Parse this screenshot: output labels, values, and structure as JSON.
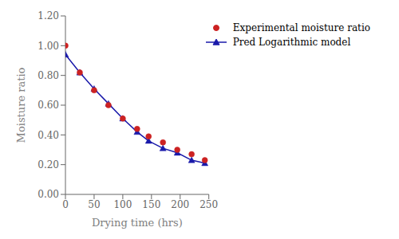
{
  "chart_data": {
    "type": "line",
    "xlabel": "Drying time (hrs)",
    "ylabel": "Moisture ratio",
    "x": [
      0,
      25,
      50,
      75,
      100,
      125,
      145,
      170,
      195,
      220,
      243
    ],
    "series": [
      {
        "name": "Pred Logarithmic model",
        "type": "line",
        "color": "#1a1aaa",
        "marker": "triangle",
        "values": [
          0.94,
          0.82,
          0.71,
          0.61,
          0.51,
          0.42,
          0.36,
          0.31,
          0.28,
          0.23,
          0.21
        ]
      },
      {
        "name": "Experimental moisture ratio",
        "type": "scatter",
        "color": "#cc2222",
        "marker": "circle",
        "values": [
          1.0,
          0.82,
          0.7,
          0.6,
          0.51,
          0.44,
          0.39,
          0.35,
          0.3,
          0.27,
          0.23
        ]
      }
    ],
    "xlim": [
      0,
      250
    ],
    "ylim": [
      0.0,
      1.2
    ],
    "xticks": [
      0,
      50,
      100,
      150,
      200,
      250
    ],
    "yticks": [
      {
        "value": 0.0,
        "label": "0.00"
      },
      {
        "value": 0.2,
        "label": "0.20"
      },
      {
        "value": 0.4,
        "label": "0.40"
      },
      {
        "value": 0.6,
        "label": "0.60"
      },
      {
        "value": 0.8,
        "label": "0.80"
      },
      {
        "value": 1.0,
        "label": "1.00"
      },
      {
        "value": 1.2,
        "label": "1.20"
      }
    ],
    "grid": false,
    "legend": "upper right"
  }
}
